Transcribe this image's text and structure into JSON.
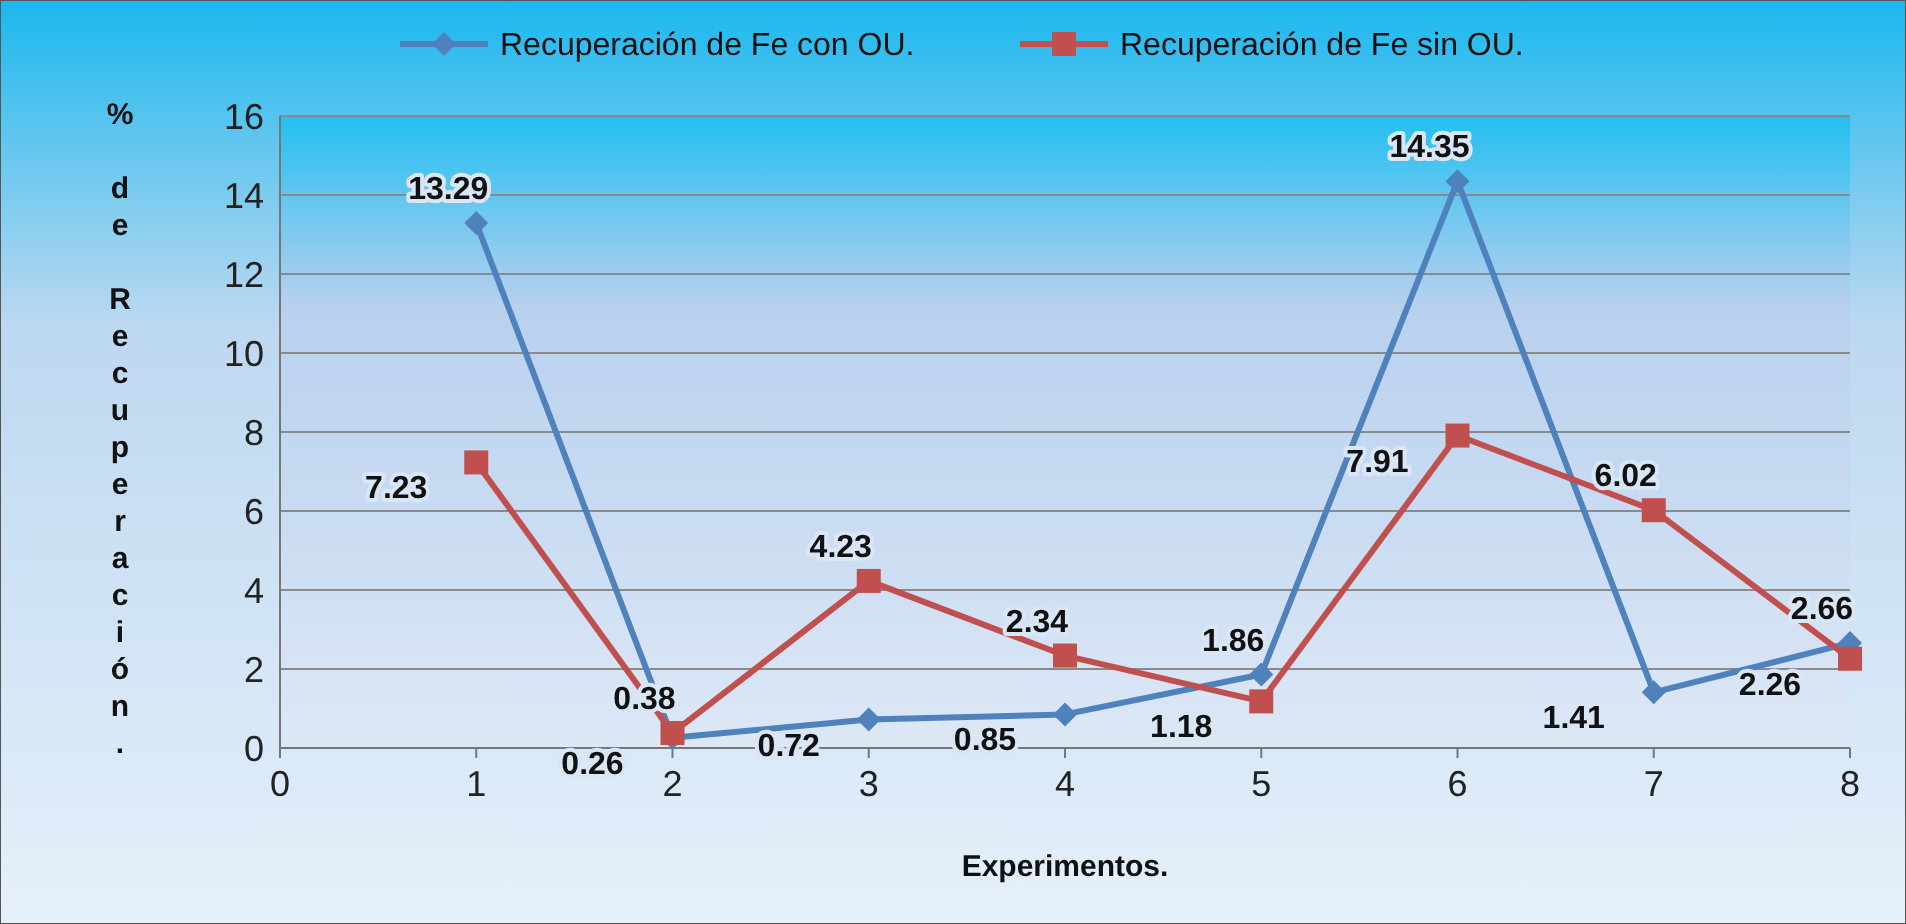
{
  "chart_data": {
    "type": "line",
    "xlabel": "Experimentos.",
    "ylabel": "% de Recuperación.",
    "x": [
      1,
      2,
      3,
      4,
      5,
      6,
      7,
      8
    ],
    "series": [
      {
        "name": "Recuperación de Fe con OU.",
        "color": "#4f81bd",
        "marker": "diamond",
        "values": [
          13.29,
          0.26,
          0.72,
          0.85,
          1.86,
          14.35,
          1.41,
          2.66
        ]
      },
      {
        "name": "Recuperación de Fe sin OU.",
        "color": "#c0504d",
        "marker": "square",
        "values": [
          7.23,
          0.38,
          4.23,
          2.34,
          1.18,
          7.91,
          6.02,
          2.26
        ]
      }
    ],
    "xlim": [
      0,
      8
    ],
    "xticks": [
      0,
      1,
      2,
      3,
      4,
      5,
      6,
      7,
      8
    ],
    "ylim": [
      0,
      16
    ],
    "yticks": [
      0,
      2,
      4,
      6,
      8,
      10,
      12,
      14,
      16
    ],
    "grid": "y",
    "legend": "top",
    "data_labels": true,
    "line_style": "solid"
  }
}
